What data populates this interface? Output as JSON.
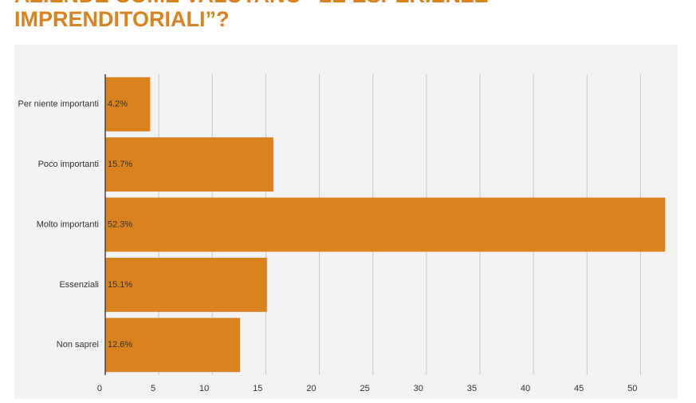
{
  "chart_data": {
    "type": "hbar",
    "title_lines": [
      "AZIENDE COME VALUTANO “LE ESPERIENZE",
      "IMPRENDITORIALI”?"
    ],
    "categories": [
      "Per niente importanti",
      "Poco importanti",
      "Molto importanti",
      "Essenziali",
      "Non saprei"
    ],
    "values": [
      4.2,
      15.7,
      52.3,
      15.1,
      12.6
    ],
    "value_labels": [
      "4.2%",
      "15.7%",
      "52.3%",
      "15.1%",
      "12.6%"
    ],
    "color": "#d9821e",
    "xlim": [
      0,
      52.5
    ],
    "xticks": [
      0,
      5,
      10,
      15,
      20,
      25,
      30,
      35,
      40,
      45,
      50
    ],
    "grid": true
  }
}
